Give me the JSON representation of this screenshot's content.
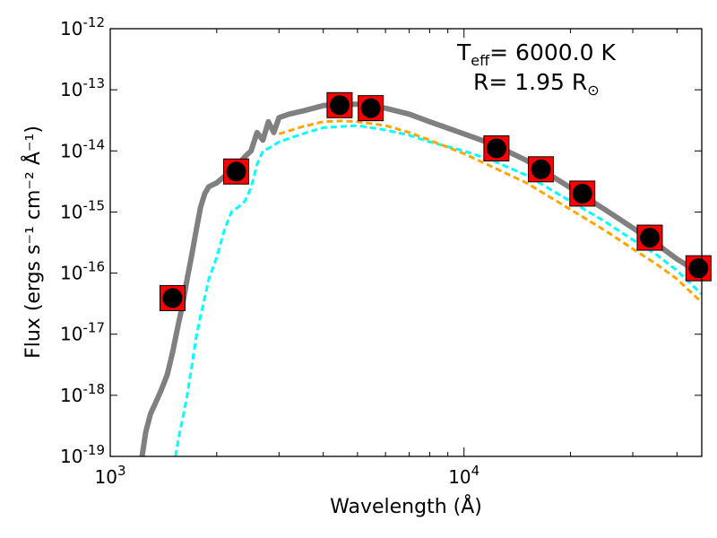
{
  "chart_data": {
    "type": "line",
    "title": "",
    "xlabel": "Wavelength (Å)",
    "ylabel": "Flux (ergs s⁻¹ cm⁻² Å⁻¹)",
    "xscale": "log",
    "yscale": "log",
    "xlim": [
      1000,
      47000
    ],
    "ylim": [
      1e-19,
      1e-12
    ],
    "x_ticks": [
      {
        "value": 1000,
        "base": "10",
        "exp": "3"
      },
      {
        "value": 10000,
        "base": "10",
        "exp": "4"
      }
    ],
    "y_ticks": [
      {
        "value": 1e-19,
        "base": "10",
        "exp": "-19"
      },
      {
        "value": 1e-18,
        "base": "10",
        "exp": "-18"
      },
      {
        "value": 1e-17,
        "base": "10",
        "exp": "-17"
      },
      {
        "value": 1e-16,
        "base": "10",
        "exp": "-16"
      },
      {
        "value": 1e-15,
        "base": "10",
        "exp": "-15"
      },
      {
        "value": 1e-14,
        "base": "10",
        "exp": "-14"
      },
      {
        "value": 1e-13,
        "base": "10",
        "exp": "-13"
      },
      {
        "value": 1e-12,
        "base": "10",
        "exp": "-12"
      }
    ],
    "annotations": {
      "teff": {
        "label": "T",
        "sub": "eff",
        "text": "= 6000.0 K"
      },
      "radius": {
        "text": "R= 1.95 R",
        "symbol": "⊙"
      }
    },
    "series": [
      {
        "name": "total-model",
        "color": "#808080",
        "style": "solid",
        "points": [
          [
            1230,
            1e-19
          ],
          [
            1260,
            2.5e-19
          ],
          [
            1300,
            5e-19
          ],
          [
            1350,
            8e-19
          ],
          [
            1400,
            1.3e-18
          ],
          [
            1450,
            2.2e-18
          ],
          [
            1500,
            5e-18
          ],
          [
            1560,
            1.5e-17
          ],
          [
            1600,
            3e-17
          ],
          [
            1650,
            8e-17
          ],
          [
            1700,
            2e-16
          ],
          [
            1750,
            5e-16
          ],
          [
            1800,
            1.2e-15
          ],
          [
            1850,
            2e-15
          ],
          [
            1900,
            2.6e-15
          ],
          [
            2000,
            3e-15
          ],
          [
            2100,
            3.8e-15
          ],
          [
            2200,
            5e-15
          ],
          [
            2300,
            6e-15
          ],
          [
            2400,
            8e-15
          ],
          [
            2500,
            1e-14
          ],
          [
            2600,
            2e-14
          ],
          [
            2700,
            1.5e-14
          ],
          [
            2800,
            3e-14
          ],
          [
            2900,
            2e-14
          ],
          [
            3000,
            3.5e-14
          ],
          [
            3200,
            4e-14
          ],
          [
            3500,
            4.5e-14
          ],
          [
            4000,
            5.5e-14
          ],
          [
            4400,
            5.8e-14
          ],
          [
            5000,
            5.8e-14
          ],
          [
            5500,
            5.5e-14
          ],
          [
            6000,
            5e-14
          ],
          [
            7000,
            4e-14
          ],
          [
            8000,
            3e-14
          ],
          [
            10000,
            1.9e-14
          ],
          [
            12000,
            1.3e-14
          ],
          [
            15000,
            7e-15
          ],
          [
            20000,
            2.5e-15
          ],
          [
            25000,
            1.1e-15
          ],
          [
            30000,
            5.5e-16
          ],
          [
            35000,
            3e-16
          ],
          [
            40000,
            1.7e-16
          ],
          [
            47000,
            9.5e-17
          ]
        ]
      },
      {
        "name": "stellar-component",
        "color": "#00ffff",
        "style": "dashed",
        "points": [
          [
            1530,
            1e-19
          ],
          [
            1560,
            2e-19
          ],
          [
            1600,
            4e-19
          ],
          [
            1650,
            1e-18
          ],
          [
            1700,
            3e-18
          ],
          [
            1750,
            9e-18
          ],
          [
            1800,
            2e-17
          ],
          [
            1850,
            4e-17
          ],
          [
            1900,
            8e-17
          ],
          [
            2000,
            1.8e-16
          ],
          [
            2100,
            5e-16
          ],
          [
            2200,
            1e-15
          ],
          [
            2300,
            1.2e-15
          ],
          [
            2400,
            1.5e-15
          ],
          [
            2500,
            2.5e-15
          ],
          [
            2600,
            6e-15
          ],
          [
            2700,
            1e-14
          ],
          [
            2800,
            1.1e-14
          ],
          [
            3000,
            1.4e-14
          ],
          [
            3300,
            1.7e-14
          ],
          [
            3600,
            2e-14
          ],
          [
            4000,
            2.4e-14
          ],
          [
            5000,
            2.6e-14
          ],
          [
            6000,
            2.2e-14
          ],
          [
            7000,
            1.8e-14
          ],
          [
            8000,
            1.4e-14
          ],
          [
            10000,
            1e-14
          ],
          [
            12000,
            7e-15
          ],
          [
            15000,
            4e-15
          ],
          [
            20000,
            1.5e-15
          ],
          [
            25000,
            7e-16
          ],
          [
            30000,
            3.5e-16
          ],
          [
            35000,
            2e-16
          ],
          [
            40000,
            1.1e-16
          ],
          [
            47000,
            4.5e-17
          ]
        ]
      },
      {
        "name": "secondary-component",
        "color": "#ffa500",
        "style": "dashed",
        "points": [
          [
            3000,
            1.9e-14
          ],
          [
            3500,
            2.5e-14
          ],
          [
            4000,
            3e-14
          ],
          [
            4500,
            3.1e-14
          ],
          [
            5000,
            3e-14
          ],
          [
            6000,
            2.6e-14
          ],
          [
            7000,
            2e-14
          ],
          [
            8000,
            1.5e-14
          ],
          [
            10000,
            9e-15
          ],
          [
            12000,
            5.5e-15
          ],
          [
            15000,
            3e-15
          ],
          [
            20000,
            1.1e-15
          ],
          [
            25000,
            5e-16
          ],
          [
            30000,
            2.5e-16
          ],
          [
            35000,
            1.4e-16
          ],
          [
            40000,
            8e-17
          ],
          [
            47000,
            3.3e-17
          ]
        ]
      }
    ],
    "photometry": {
      "name": "observed-photometry",
      "square_color": "#ff0000",
      "dot_color": "#000000",
      "points": [
        [
          1500,
          3.9e-17
        ],
        [
          2270,
          4.6e-15
        ],
        [
          4450,
          5.6e-14
        ],
        [
          5450,
          5e-14
        ],
        [
          12350,
          1.1e-14
        ],
        [
          16500,
          5e-15
        ],
        [
          21600,
          2e-15
        ],
        [
          33500,
          3.8e-16
        ],
        [
          46000,
          1.2e-16
        ]
      ]
    }
  }
}
